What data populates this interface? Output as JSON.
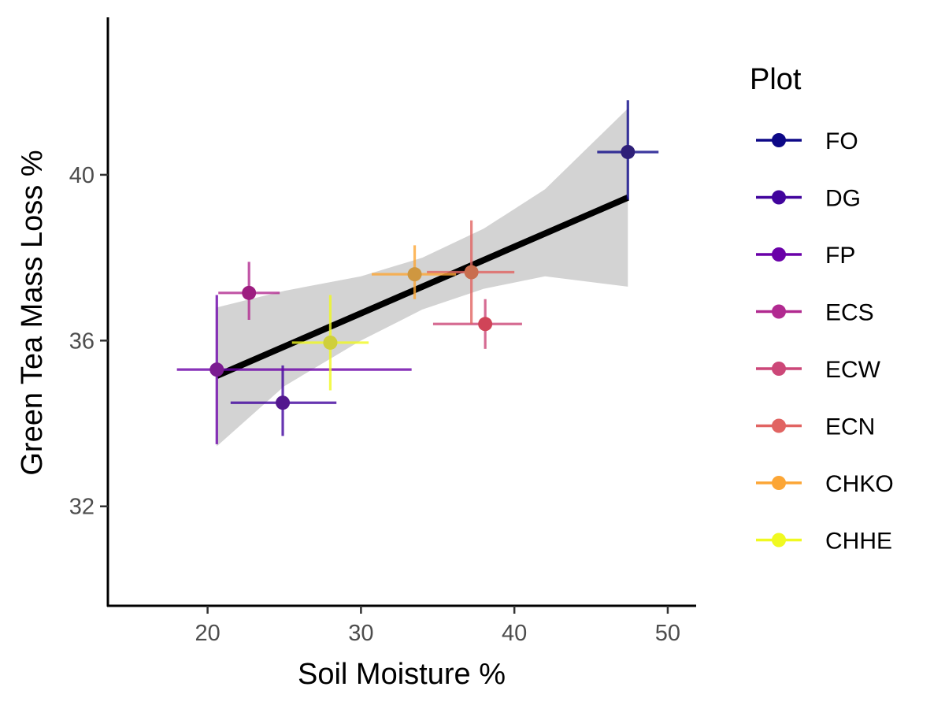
{
  "chart_data": {
    "type": "scatter",
    "xlabel": "Soil Moisture %",
    "ylabel": "Green Tea Mass Loss %",
    "xlim": [
      13.5,
      51.8
    ],
    "ylim": [
      29.6,
      43.8
    ],
    "xticks": [
      20,
      30,
      40,
      50
    ],
    "yticks": [
      32,
      36,
      40
    ],
    "x_tick_labels": [
      "20",
      "30",
      "40",
      "50"
    ],
    "y_tick_labels": [
      "32",
      "36",
      "40"
    ],
    "grid": false,
    "legend": {
      "title": "Plot",
      "position": "right"
    },
    "series": [
      {
        "name": "FO",
        "color": "#0d0887",
        "x": 47.4,
        "y": 40.55,
        "x_err": [
          45.4,
          49.4
        ],
        "y_err": [
          39.4,
          41.8
        ]
      },
      {
        "name": "DG",
        "color": "#41049d",
        "x": 24.9,
        "y": 34.5,
        "x_err": [
          21.5,
          28.4
        ],
        "y_err": [
          33.7,
          35.4
        ]
      },
      {
        "name": "FP",
        "color": "#6a00a8",
        "x": 20.6,
        "y": 35.3,
        "x_err": [
          18.0,
          33.3
        ],
        "y_err": [
          33.5,
          37.1
        ]
      },
      {
        "name": "ECS",
        "color": "#b12a90",
        "x": 22.7,
        "y": 37.15,
        "x_err": [
          20.7,
          24.7
        ],
        "y_err": [
          36.5,
          37.9
        ]
      },
      {
        "name": "ECW",
        "color": "#cc4778",
        "x": 38.1,
        "y": 36.4,
        "x_err": [
          34.7,
          40.5
        ],
        "y_err": [
          35.8,
          37.0
        ]
      },
      {
        "name": "ECN",
        "color": "#e16462",
        "x": 37.2,
        "y": 37.65,
        "x_err": [
          34.3,
          40.0
        ],
        "y_err": [
          36.4,
          38.9
        ]
      },
      {
        "name": "CHKO",
        "color": "#fca636",
        "x": 33.5,
        "y": 37.6,
        "x_err": [
          30.7,
          36.2
        ],
        "y_err": [
          37.0,
          38.3
        ]
      },
      {
        "name": "CHHE",
        "color": "#f0f921",
        "x": 28.0,
        "y": 35.95,
        "x_err": [
          25.5,
          30.5
        ],
        "y_err": [
          34.8,
          37.1
        ]
      }
    ],
    "series_marker_colors": [
      "#2e1f78",
      "#53188e",
      "#7b1c91",
      "#9d1d80",
      "#d04458",
      "#c96e4f",
      "#cf9740",
      "#cfcf3b"
    ],
    "trend_line": {
      "type": "linear",
      "color": "#000000",
      "x": [
        20.6,
        47.4
      ],
      "y": [
        35.15,
        39.45
      ]
    },
    "confidence_band": {
      "color": "#d3d3d3",
      "x": [
        20.6,
        25,
        30,
        34,
        38,
        42,
        47.4
      ],
      "lower": [
        33.45,
        34.9,
        36.0,
        36.75,
        37.25,
        37.55,
        37.3
      ],
      "upper": [
        36.8,
        37.2,
        37.55,
        38.0,
        38.7,
        39.65,
        41.6
      ]
    }
  }
}
